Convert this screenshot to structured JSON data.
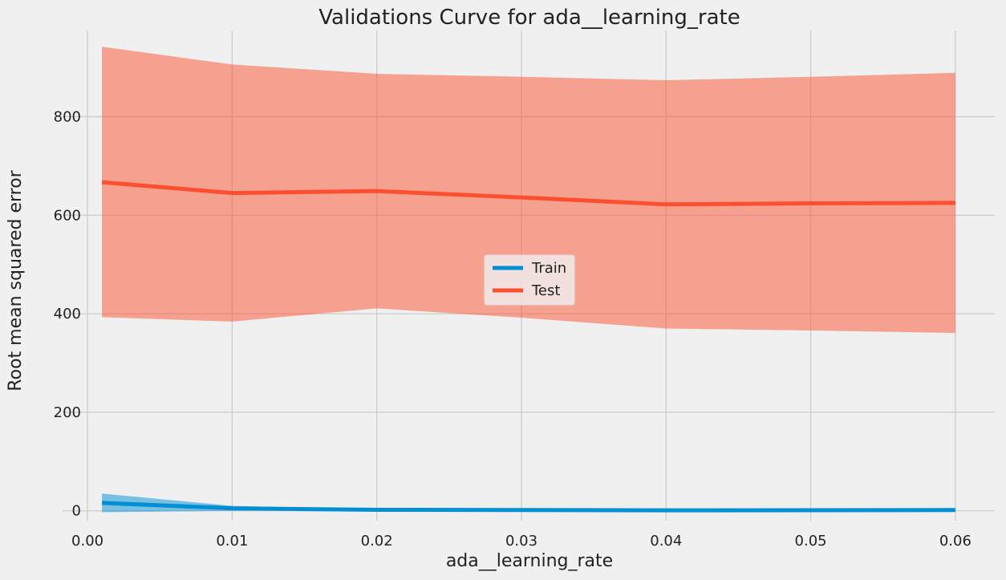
{
  "chart_data": {
    "type": "line",
    "title": "Validations Curve for ada__learning_rate",
    "xlabel": "ada__learning_rate",
    "ylabel": "Root mean squared error",
    "x": [
      0.001,
      0.01,
      0.02,
      0.03,
      0.04,
      0.05,
      0.06
    ],
    "xlim": [
      -0.002,
      0.063
    ],
    "ylim": [
      -20,
      975
    ],
    "xticks": [
      0.0,
      0.01,
      0.02,
      0.03,
      0.04,
      0.05,
      0.06
    ],
    "xtick_labels": [
      "0.00",
      "0.01",
      "0.02",
      "0.03",
      "0.04",
      "0.05",
      "0.06"
    ],
    "yticks": [
      0,
      200,
      400,
      600,
      800
    ],
    "ytick_labels": [
      "0",
      "200",
      "400",
      "600",
      "800"
    ],
    "grid": true,
    "legend_position": "center",
    "series": [
      {
        "name": "Train",
        "color": "#008fd5",
        "values": [
          16,
          5,
          2,
          1.5,
          1,
          1.2,
          1.5
        ],
        "band_upper": [
          35,
          10,
          3,
          2,
          1.5,
          1.7,
          2
        ],
        "band_lower": [
          -3,
          0,
          1,
          1,
          0.5,
          0.7,
          1
        ]
      },
      {
        "name": "Test",
        "color": "#fc4f30",
        "values": [
          667,
          645,
          649,
          636,
          622,
          624,
          625
        ],
        "band_upper": [
          942,
          906,
          887,
          881,
          874,
          881,
          889
        ],
        "band_lower": [
          393,
          384,
          411,
          392,
          370,
          366,
          361
        ]
      }
    ]
  }
}
